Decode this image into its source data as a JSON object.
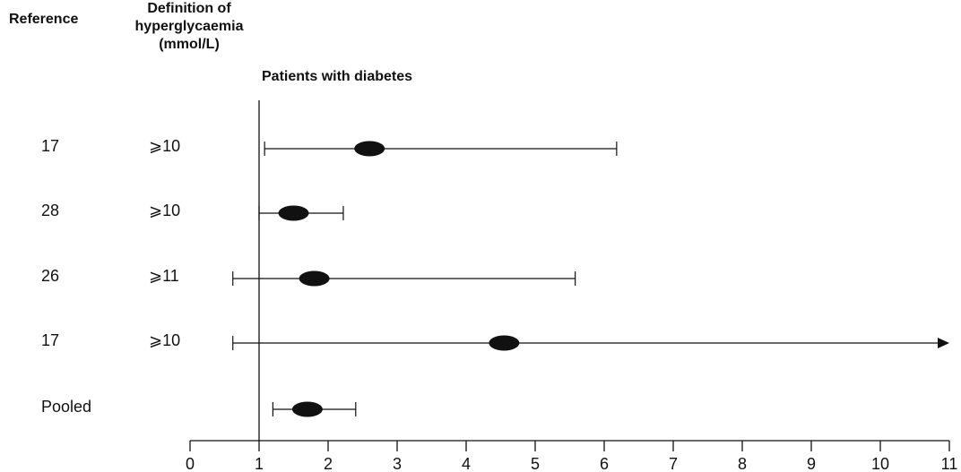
{
  "headers": {
    "reference": "Reference",
    "definition_lines": [
      "Definition of",
      "hyperglycaemia",
      "(mmol/L)"
    ],
    "panel_title": "Patients with diabetes"
  },
  "chart_data": {
    "type": "forest",
    "title": "Patients with diabetes",
    "xlim": [
      0,
      11
    ],
    "x_ticks": [
      "0",
      "1",
      "2",
      "3",
      "4",
      "5",
      "6",
      "7",
      "8",
      "9",
      "10",
      "11"
    ],
    "reference_line": 1,
    "rows": [
      {
        "reference": "17",
        "definition": "⩾10",
        "estimate": 2.6,
        "ci_low": 1.08,
        "ci_high": 6.18,
        "upper_arrow": false
      },
      {
        "reference": "28",
        "definition": "⩾10",
        "estimate": 1.5,
        "ci_low": 1.0,
        "ci_high": 2.22,
        "upper_arrow": false
      },
      {
        "reference": "26",
        "definition": "⩾11",
        "estimate": 1.8,
        "ci_low": 0.62,
        "ci_high": 5.58,
        "upper_arrow": false
      },
      {
        "reference": "17",
        "definition": "⩾10",
        "estimate": 4.55,
        "ci_low": 0.62,
        "ci_high": 11,
        "upper_arrow": true
      },
      {
        "reference": "Pooled",
        "definition": "",
        "estimate": 1.7,
        "ci_low": 1.2,
        "ci_high": 2.4,
        "upper_arrow": false
      }
    ]
  }
}
